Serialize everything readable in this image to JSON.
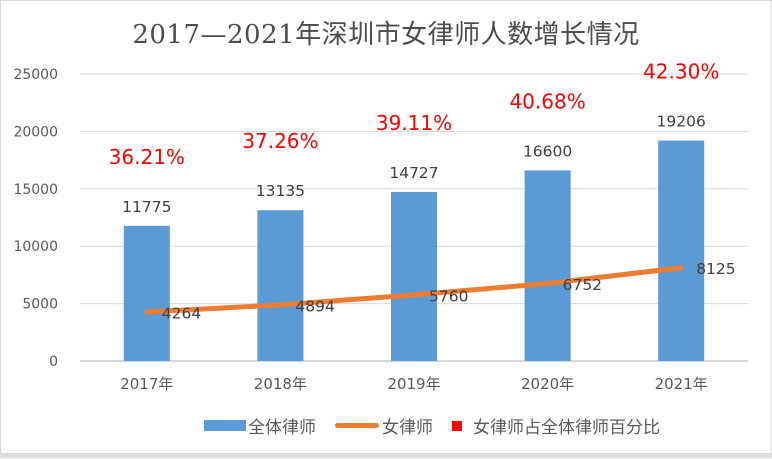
{
  "title": "2017—2021年深圳市女律师人数增长情况",
  "chart_data": {
    "type": "combo",
    "title": "2017—2021年深圳市女律师人数增长情况",
    "categories": [
      "2017年",
      "2018年",
      "2019年",
      "2020年",
      "2021年"
    ],
    "series": [
      {
        "name": "全体律师",
        "type": "bar",
        "values": [
          11775,
          13135,
          14727,
          16600,
          19206
        ]
      },
      {
        "name": "女律师",
        "type": "line",
        "values": [
          4264,
          4894,
          5760,
          6752,
          8125
        ]
      },
      {
        "name": "女律师占全体律师百分比",
        "type": "percent-label",
        "values": [
          "36.21%",
          "37.26%",
          "39.11%",
          "40.68%",
          "42.30%"
        ]
      }
    ],
    "ylim": [
      0,
      25000
    ],
    "yticks": [
      0,
      5000,
      10000,
      15000,
      20000,
      25000
    ],
    "grid": true,
    "legend_position": "bottom"
  },
  "legend": {
    "items": [
      {
        "label": "全体律师",
        "marker": "bar"
      },
      {
        "label": "女律师",
        "marker": "line"
      },
      {
        "label": "女律师占全体律师百分比",
        "marker": "square"
      }
    ]
  },
  "colors": {
    "bar": "#5B9BD5",
    "line": "#ED7D31",
    "percent_text": "#FF0000",
    "percent_marker": "#FF0000",
    "gridline": "#D9D9D9",
    "axis_line": "#BFBFBF",
    "tick_text": "#595959",
    "data_label_text": "#404040",
    "title_text": "#4D4D4D"
  }
}
